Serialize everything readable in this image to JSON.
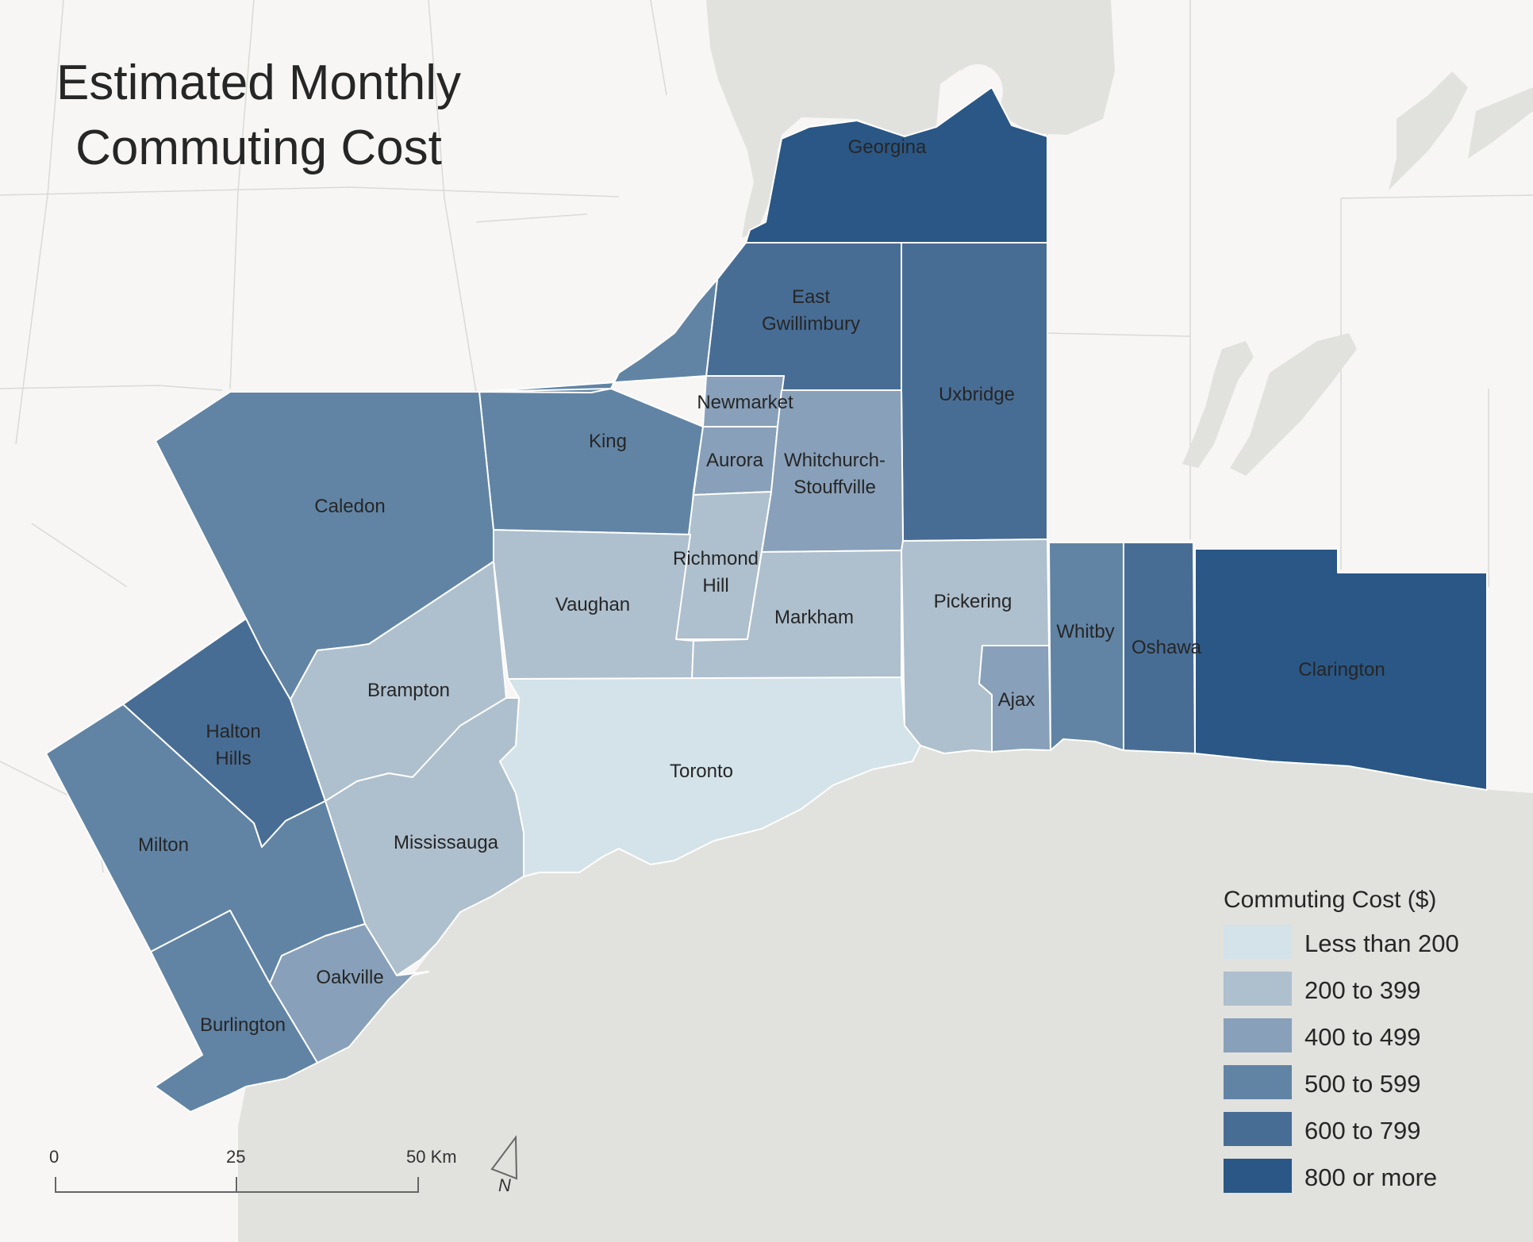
{
  "title": {
    "line1": "Estimated Monthly",
    "line2": "Commuting Cost"
  },
  "legend": {
    "title": "Commuting Cost ($)",
    "classes": [
      {
        "label": "Less than 200",
        "color": "#d4e2e9"
      },
      {
        "label": "200 to 399",
        "color": "#aebfcd"
      },
      {
        "label": "400 to 499",
        "color": "#88a0b9"
      },
      {
        "label": "500 to 599",
        "color": "#6184a5"
      },
      {
        "label": "600 to 799",
        "color": "#486d95"
      },
      {
        "label": "800 or more",
        "color": "#2a5785"
      }
    ]
  },
  "regions": [
    {
      "name": "Georgina",
      "cost_class": "800 or more"
    },
    {
      "name": "East Gwillimbury",
      "cost_class": "600 to 799"
    },
    {
      "name": "Uxbridge",
      "cost_class": "600 to 799"
    },
    {
      "name": "Newmarket",
      "cost_class": "400 to 499"
    },
    {
      "name": "King",
      "cost_class": "500 to 599"
    },
    {
      "name": "Aurora",
      "cost_class": "400 to 499"
    },
    {
      "name": "Whitchurch-Stouffville",
      "cost_class": "400 to 499"
    },
    {
      "name": "Caledon",
      "cost_class": "500 to 599"
    },
    {
      "name": "Richmond Hill",
      "cost_class": "200 to 399"
    },
    {
      "name": "Vaughan",
      "cost_class": "200 to 399"
    },
    {
      "name": "Markham",
      "cost_class": "200 to 399"
    },
    {
      "name": "Pickering",
      "cost_class": "200 to 399"
    },
    {
      "name": "Whitby",
      "cost_class": "500 to 599"
    },
    {
      "name": "Oshawa",
      "cost_class": "600 to 799"
    },
    {
      "name": "Clarington",
      "cost_class": "800 or more"
    },
    {
      "name": "Ajax",
      "cost_class": "400 to 499"
    },
    {
      "name": "Brampton",
      "cost_class": "200 to 399"
    },
    {
      "name": "Halton Hills",
      "cost_class": "600 to 799"
    },
    {
      "name": "Toronto",
      "cost_class": "Less than 200"
    },
    {
      "name": "Milton",
      "cost_class": "500 to 599"
    },
    {
      "name": "Mississauga",
      "cost_class": "200 to 399"
    },
    {
      "name": "Oakville",
      "cost_class": "400 to 499"
    },
    {
      "name": "Burlington",
      "cost_class": "500 to 599"
    }
  ],
  "scale_bar": {
    "labels": [
      "0",
      "25",
      "50 Km"
    ]
  },
  "north_arrow": {
    "label": "N"
  },
  "colors": {
    "background": "#f7f6f4",
    "water": "#e1e1de",
    "region_stroke": "#ffffff"
  }
}
